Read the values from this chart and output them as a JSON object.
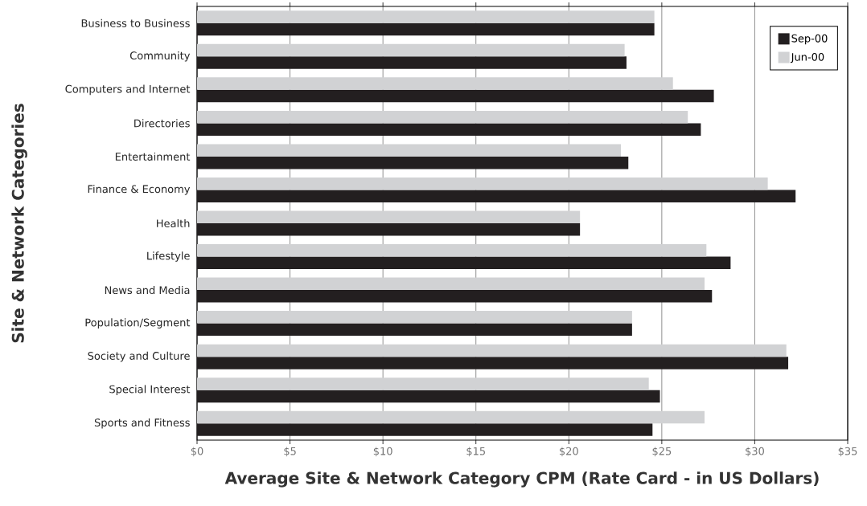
{
  "chart_data": {
    "type": "bar",
    "orientation": "horizontal",
    "xlabel": "Average Site & Network Category CPM (Rate Card - in US Dollars)",
    "ylabel": "Site & Network Categories",
    "categories": [
      "Business to Business",
      "Community",
      "Computers and Internet",
      "Directories",
      "Entertainment",
      "Finance & Economy",
      "Health",
      "Lifestyle",
      "News and Media",
      "Population/Segment",
      "Society and Culture",
      "Special Interest",
      "Sports and Fitness"
    ],
    "series": [
      {
        "name": "Sep-00",
        "color": "#231f20",
        "values": [
          24.6,
          23.1,
          27.8,
          27.1,
          23.2,
          32.2,
          20.6,
          28.7,
          27.7,
          23.4,
          31.8,
          24.9,
          24.5
        ]
      },
      {
        "name": "Jun-00",
        "color": "#d1d2d4",
        "values": [
          24.6,
          23.0,
          25.6,
          26.4,
          22.8,
          30.7,
          20.6,
          27.4,
          27.3,
          23.4,
          31.7,
          24.3,
          27.3
        ]
      }
    ],
    "xlim": [
      0,
      35
    ],
    "xticks": [
      {
        "value": 0,
        "label": "$0"
      },
      {
        "value": 5,
        "label": "$5"
      },
      {
        "value": 10,
        "label": "$10"
      },
      {
        "value": 15,
        "label": "$15"
      },
      {
        "value": 20,
        "label": "$20"
      },
      {
        "value": 25,
        "label": "$25"
      },
      {
        "value": 30,
        "label": "$30"
      },
      {
        "value": 35,
        "label": "$35"
      }
    ],
    "grid": "x",
    "legend": "top right"
  }
}
